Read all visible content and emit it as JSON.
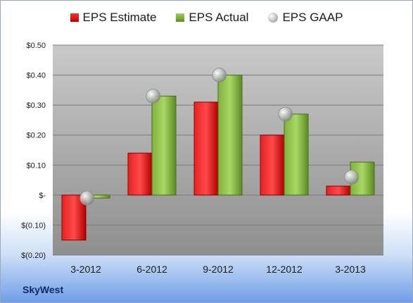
{
  "company": "SkyWest",
  "colors": {
    "estimate": "#d11a1a",
    "actual": "#7fb23c",
    "gaap": "#b5b5b5"
  },
  "chart_data": {
    "type": "bar",
    "categories": [
      "3-2012",
      "6-2012",
      "9-2012",
      "12-2012",
      "3-2013"
    ],
    "series": [
      {
        "name": "EPS Estimate",
        "values": [
          -0.15,
          0.14,
          0.31,
          0.2,
          0.03
        ]
      },
      {
        "name": "EPS Actual",
        "values": [
          -0.01,
          0.33,
          0.4,
          0.27,
          0.11
        ]
      },
      {
        "name": "EPS GAAP",
        "values": [
          -0.01,
          0.33,
          0.4,
          0.27,
          0.06
        ]
      }
    ],
    "yticks": [
      0.5,
      0.4,
      0.3,
      0.2,
      0.1,
      0,
      -0.1,
      -0.2
    ],
    "ytick_labels": [
      "$0.50",
      "$0.40",
      "$0.30",
      "$0.20",
      "$0.10",
      "$-",
      "$(0.10)",
      "$(0.20)"
    ],
    "ylim": [
      -0.2,
      0.5
    ],
    "grid": true,
    "legend_position": "top"
  }
}
